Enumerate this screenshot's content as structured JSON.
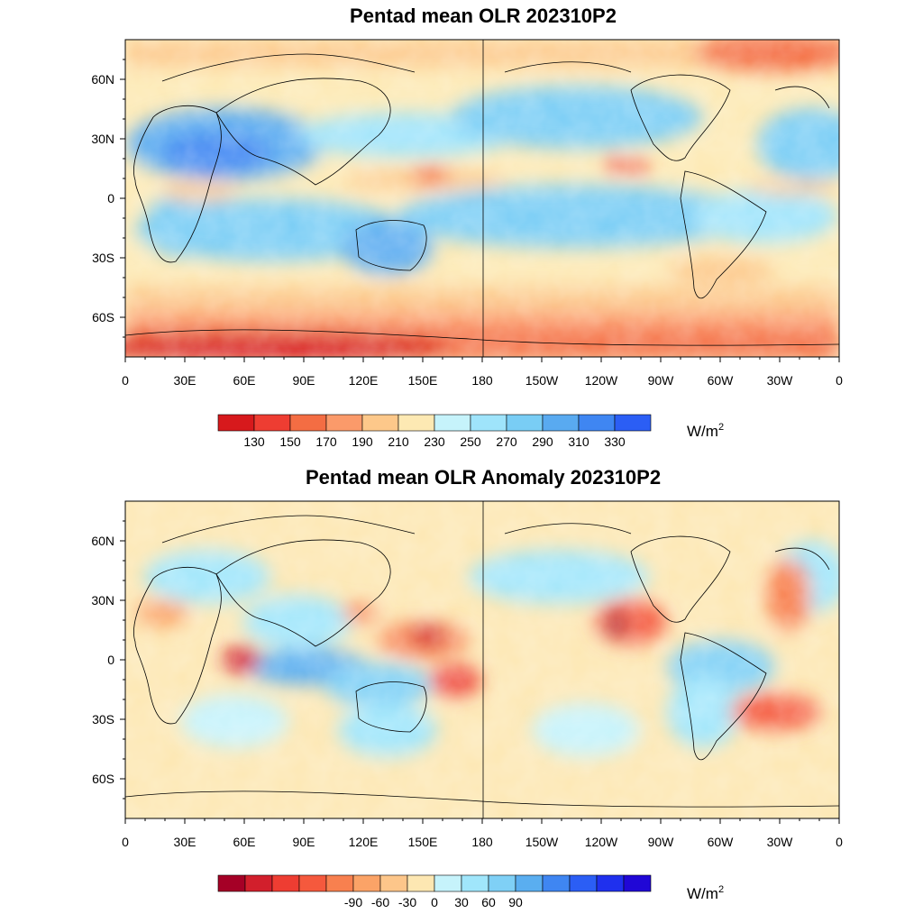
{
  "panels": [
    {
      "title": "Pentad mean OLR 202310P2",
      "lat_labels": [
        "60N",
        "30N",
        "0",
        "30S",
        "60S"
      ],
      "lon_labels": [
        "0",
        "30E",
        "60E",
        "90E",
        "120E",
        "150E",
        "180",
        "150W",
        "120W",
        "90W",
        "60W",
        "30W",
        "0"
      ],
      "colorbar": {
        "colors": [
          "#d7191c",
          "#ee3d32",
          "#f46d43",
          "#fb9a6a",
          "#fdc88a",
          "#fde9b3",
          "#c6f3fb",
          "#9fe4fb",
          "#79cdf5",
          "#59aaf0",
          "#3f86f2",
          "#2b5ef5"
        ],
        "tick_labels": [
          "130",
          "150",
          "170",
          "190",
          "210",
          "230",
          "250",
          "270",
          "290",
          "310",
          "330"
        ],
        "unit": "W/m",
        "unit_superscript": "2"
      }
    },
    {
      "title": "Pentad mean OLR Anomaly 202310P2",
      "lat_labels": [
        "60N",
        "30N",
        "0",
        "30S",
        "60S"
      ],
      "lon_labels": [
        "0",
        "30E",
        "60E",
        "90E",
        "120E",
        "150E",
        "180",
        "150W",
        "120W",
        "90W",
        "60W",
        "30W",
        "0"
      ],
      "colorbar": {
        "colors": [
          "#a50026",
          "#d21f2c",
          "#ee3d32",
          "#f5593d",
          "#f8804f",
          "#fba367",
          "#fdc68a",
          "#fde7b2",
          "#c6f3fb",
          "#a0e6fb",
          "#7fd0f6",
          "#5aaef0",
          "#3f86f2",
          "#2b5ef5",
          "#1f30ee",
          "#2007d6"
        ],
        "tick_labels": [
          "-90",
          "-60",
          "-30",
          "0",
          "30",
          "60",
          "90"
        ],
        "unit": "W/m",
        "unit_superscript": "2"
      }
    }
  ],
  "map_style": {
    "land_outline": "#000000",
    "frame": "#000000"
  }
}
